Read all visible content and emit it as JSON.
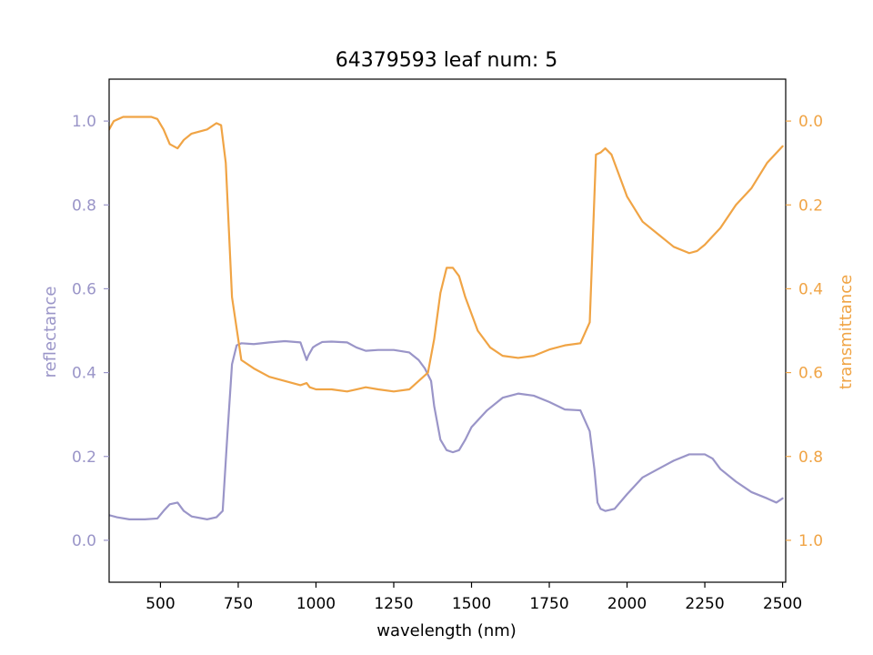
{
  "chart_data": {
    "type": "line",
    "title": "64379593 leaf num: 5",
    "xlabel": "wavelength (nm)",
    "ylabel_left": "reflectance",
    "ylabel_right": "transmittance",
    "xlim": [
      335,
      2510
    ],
    "ylim_left": [
      -0.1,
      1.1
    ],
    "ylim_right": [
      1.1,
      -0.1
    ],
    "right_axis_inverted": true,
    "x_ticks": [
      500,
      750,
      1000,
      1250,
      1500,
      1750,
      2000,
      2250,
      2500
    ],
    "x_tick_labels": [
      "500",
      "750",
      "1000",
      "1250",
      "1500",
      "1750",
      "2000",
      "2250",
      "2500"
    ],
    "left_ticks": [
      0.0,
      0.2,
      0.4,
      0.6,
      0.8,
      1.0
    ],
    "left_tick_labels": [
      "0.0",
      "0.2",
      "0.4",
      "0.6",
      "0.8",
      "1.0"
    ],
    "right_ticks": [
      0.0,
      0.2,
      0.4,
      0.6,
      0.8,
      1.0
    ],
    "right_tick_labels": [
      "0.0",
      "0.2",
      "0.4",
      "0.6",
      "0.8",
      "1.0"
    ],
    "grid": false,
    "legend": "none",
    "colors": {
      "reflectance": "#9a95c8",
      "transmittance": "#f0a445",
      "frame": "#000000"
    },
    "series": [
      {
        "name": "reflectance",
        "axis": "left",
        "x": [
          335,
          360,
          400,
          450,
          490,
          510,
          530,
          555,
          575,
          600,
          650,
          680,
          700,
          715,
          730,
          745,
          760,
          800,
          850,
          900,
          950,
          970,
          975,
          990,
          1000,
          1020,
          1050,
          1100,
          1130,
          1160,
          1200,
          1250,
          1300,
          1330,
          1350,
          1370,
          1380,
          1400,
          1420,
          1440,
          1460,
          1480,
          1500,
          1550,
          1600,
          1650,
          1700,
          1750,
          1800,
          1850,
          1880,
          1895,
          1905,
          1915,
          1930,
          1960,
          2000,
          2050,
          2100,
          2150,
          2200,
          2250,
          2275,
          2300,
          2350,
          2400,
          2450,
          2480,
          2500
        ],
        "y": [
          0.06,
          0.055,
          0.05,
          0.05,
          0.052,
          0.07,
          0.086,
          0.09,
          0.07,
          0.057,
          0.05,
          0.055,
          0.07,
          0.25,
          0.42,
          0.465,
          0.47,
          0.468,
          0.472,
          0.475,
          0.472,
          0.43,
          0.44,
          0.46,
          0.465,
          0.473,
          0.474,
          0.472,
          0.46,
          0.452,
          0.454,
          0.454,
          0.448,
          0.43,
          0.41,
          0.38,
          0.32,
          0.24,
          0.215,
          0.21,
          0.215,
          0.24,
          0.27,
          0.31,
          0.34,
          0.35,
          0.345,
          0.33,
          0.312,
          0.31,
          0.26,
          0.17,
          0.09,
          0.075,
          0.07,
          0.075,
          0.11,
          0.15,
          0.17,
          0.19,
          0.205,
          0.205,
          0.195,
          0.17,
          0.14,
          0.115,
          0.1,
          0.09,
          0.1
        ]
      },
      {
        "name": "transmittance",
        "axis": "right",
        "x": [
          335,
          350,
          380,
          420,
          470,
          490,
          510,
          530,
          555,
          575,
          600,
          650,
          680,
          695,
          710,
          730,
          760,
          800,
          850,
          900,
          950,
          970,
          980,
          1000,
          1050,
          1100,
          1130,
          1160,
          1200,
          1250,
          1300,
          1330,
          1360,
          1380,
          1400,
          1420,
          1440,
          1460,
          1480,
          1520,
          1560,
          1600,
          1650,
          1700,
          1750,
          1800,
          1850,
          1880,
          1900,
          1915,
          1930,
          1950,
          2000,
          2050,
          2100,
          2150,
          2200,
          2225,
          2250,
          2275,
          2300,
          2350,
          2400,
          2450,
          2500
        ],
        "y": [
          0.02,
          0.0,
          -0.01,
          -0.01,
          -0.01,
          -0.005,
          0.02,
          0.055,
          0.065,
          0.045,
          0.03,
          0.02,
          0.005,
          0.01,
          0.1,
          0.42,
          0.57,
          0.59,
          0.61,
          0.62,
          0.63,
          0.625,
          0.635,
          0.64,
          0.64,
          0.645,
          0.64,
          0.635,
          0.64,
          0.645,
          0.64,
          0.62,
          0.6,
          0.52,
          0.41,
          0.35,
          0.35,
          0.37,
          0.42,
          0.5,
          0.54,
          0.56,
          0.565,
          0.56,
          0.545,
          0.535,
          0.53,
          0.48,
          0.08,
          0.075,
          0.065,
          0.08,
          0.18,
          0.24,
          0.27,
          0.3,
          0.315,
          0.31,
          0.295,
          0.275,
          0.255,
          0.2,
          0.16,
          0.1,
          0.06
        ]
      }
    ]
  }
}
